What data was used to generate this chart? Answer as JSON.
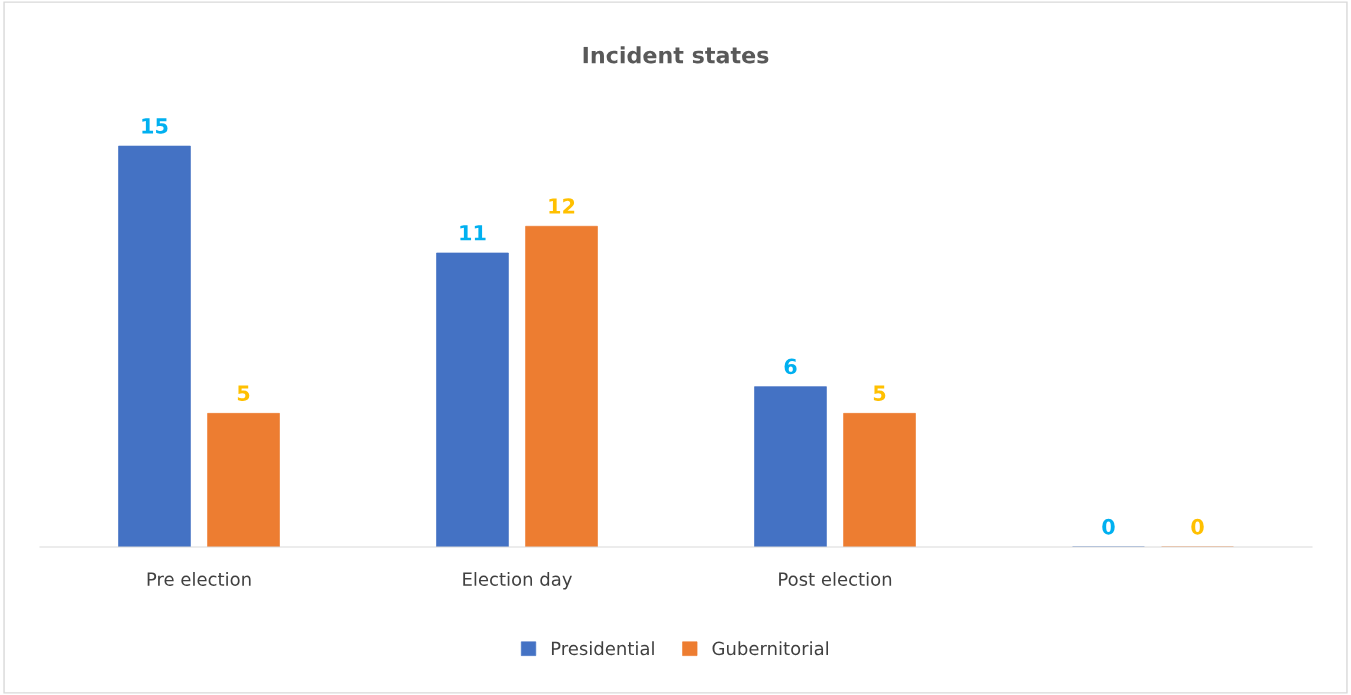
{
  "chart_data": {
    "type": "bar",
    "title": "Incident states",
    "categories": [
      "Pre election",
      "Election day",
      "Post election",
      null
    ],
    "series": [
      {
        "name": "Presidential",
        "color": "#4472c4",
        "values": [
          15,
          11,
          6,
          0
        ]
      },
      {
        "name": "Gubernitorial",
        "color": "#ed7d31",
        "values": [
          5,
          12,
          5,
          0
        ]
      }
    ],
    "data_labels": true,
    "legend": "bottom",
    "grid": false
  }
}
